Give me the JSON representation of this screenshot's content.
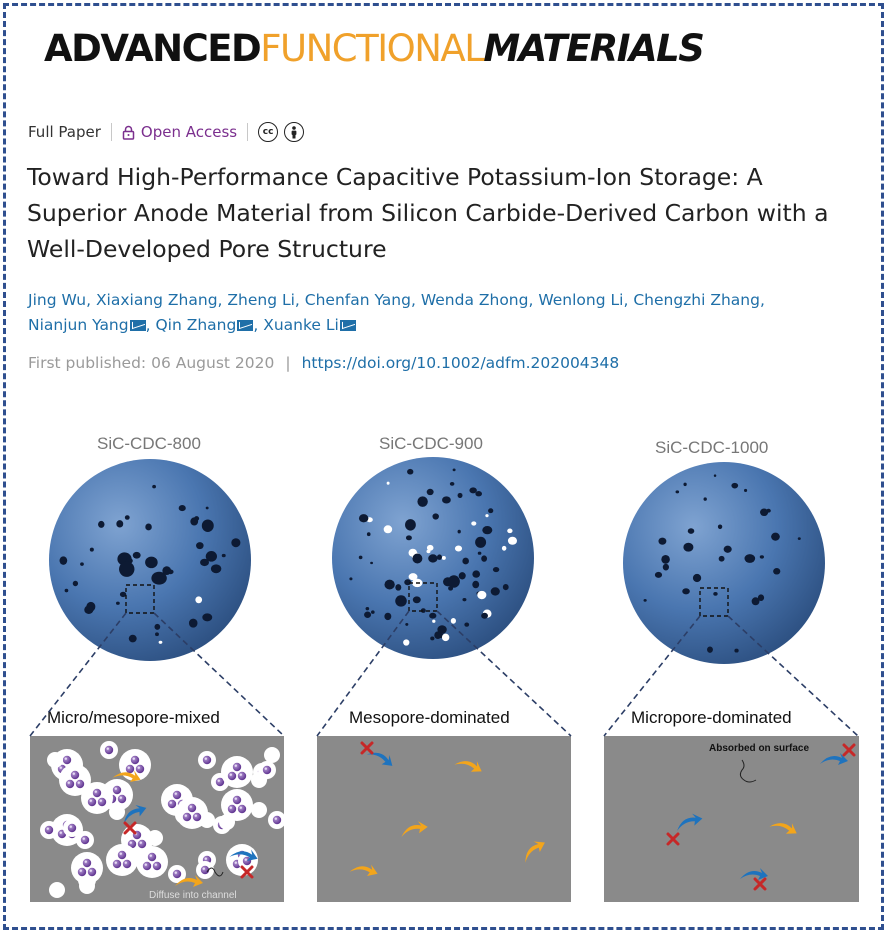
{
  "journal": {
    "word1": "ADVANCED",
    "word2": "FUNCTIONAL",
    "word3": "MATERIALS"
  },
  "meta": {
    "article_type": "Full Paper",
    "access": "Open Access",
    "icons": [
      "lock-icon",
      "creative-commons-icon",
      "attribution-icon"
    ]
  },
  "title": "Toward High-Performance Capacitive Potassium-Ion Storage: A Superior Anode Material from Silicon Carbide-Derived Carbon with a Well-Developed Pore Structure",
  "authors": [
    {
      "name": "Jing Wu",
      "mail": false
    },
    {
      "name": "Xiaxiang Zhang",
      "mail": false
    },
    {
      "name": "Zheng Li",
      "mail": false
    },
    {
      "name": "Chenfan Yang",
      "mail": false
    },
    {
      "name": "Wenda Zhong",
      "mail": false
    },
    {
      "name": "Wenlong Li",
      "mail": false
    },
    {
      "name": "Chengzhi Zhang",
      "mail": false
    },
    {
      "name": "Nianjun Yang",
      "mail": true
    },
    {
      "name": "Qin Zhang",
      "mail": true
    },
    {
      "name": "Xuanke Li",
      "mail": true
    }
  ],
  "publication": {
    "first_published": "First published: 06 August 2020",
    "doi": "https://doi.org/10.1002/adfm.202004348"
  },
  "figure": {
    "samples": [
      "SiC-CDC-800",
      "SiC-CDC-900",
      "SiC-CDC-1000"
    ],
    "panels": [
      "Micro/mesopore-mixed",
      "Mesopore-dominated",
      "Micropore-dominated"
    ],
    "annotations": {
      "left": "Diffuse into channel",
      "right": "Absorbed on surface"
    },
    "colors": {
      "sphere": "#4a76b0",
      "pore_panel": "#8a8a8a",
      "ion": "#6a3d9a",
      "arrow": "#f3a51b",
      "block_cross": "#c62828",
      "frame": "#2f4f8f"
    }
  }
}
